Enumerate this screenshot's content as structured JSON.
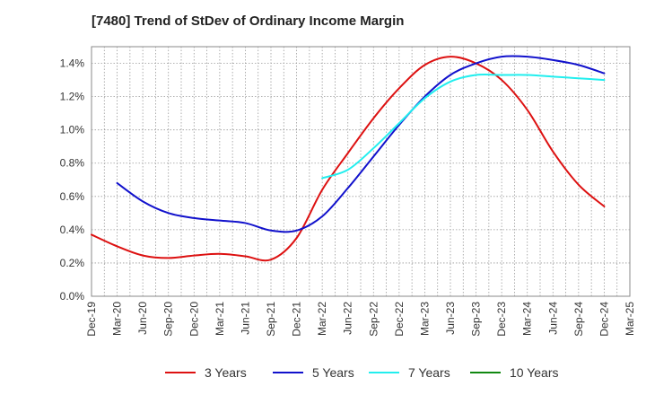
{
  "chart_data": {
    "type": "line",
    "title": "[7480]  Trend of StDev of Ordinary Income Margin",
    "xlabel": "",
    "ylabel": "",
    "x_labels": [
      "Dec-19",
      "Mar-20",
      "Jun-20",
      "Sep-20",
      "Dec-20",
      "Mar-21",
      "Jun-21",
      "Sep-21",
      "Dec-21",
      "Mar-22",
      "Jun-22",
      "Sep-22",
      "Dec-22",
      "Mar-23",
      "Jun-23",
      "Sep-23",
      "Dec-23",
      "Mar-24",
      "Jun-24",
      "Sep-24",
      "Dec-24",
      "Mar-25"
    ],
    "y_ticks": [
      "0.0%",
      "0.2%",
      "0.4%",
      "0.6%",
      "0.8%",
      "1.0%",
      "1.2%",
      "1.4%"
    ],
    "ylim": [
      0,
      1.5
    ],
    "y_unit": "%",
    "grid": true,
    "legend_position": "bottom",
    "series": [
      {
        "name": "3 Years",
        "color": "#dd1111",
        "values": [
          0.37,
          0.3,
          0.245,
          0.23,
          0.245,
          0.255,
          0.24,
          0.22,
          0.35,
          0.64,
          0.86,
          1.07,
          1.25,
          1.39,
          1.44,
          1.4,
          1.3,
          1.12,
          0.87,
          0.67,
          0.54,
          null
        ]
      },
      {
        "name": "5 Years",
        "color": "#1111cc",
        "values": [
          null,
          0.68,
          0.57,
          0.5,
          0.47,
          0.455,
          0.44,
          0.395,
          0.395,
          0.48,
          0.65,
          0.84,
          1.03,
          1.2,
          1.33,
          1.4,
          1.44,
          1.44,
          1.42,
          1.39,
          1.34,
          null
        ]
      },
      {
        "name": "7 Years",
        "color": "#22eeee",
        "values": [
          null,
          null,
          null,
          null,
          null,
          null,
          null,
          null,
          null,
          0.71,
          0.76,
          0.89,
          1.04,
          1.19,
          1.29,
          1.33,
          1.33,
          1.33,
          1.32,
          1.31,
          1.3,
          null
        ]
      },
      {
        "name": "10 Years",
        "color": "#118811",
        "values": [
          null,
          null,
          null,
          null,
          null,
          null,
          null,
          null,
          null,
          null,
          null,
          null,
          null,
          null,
          null,
          null,
          null,
          null,
          null,
          null,
          null,
          null
        ]
      }
    ]
  }
}
